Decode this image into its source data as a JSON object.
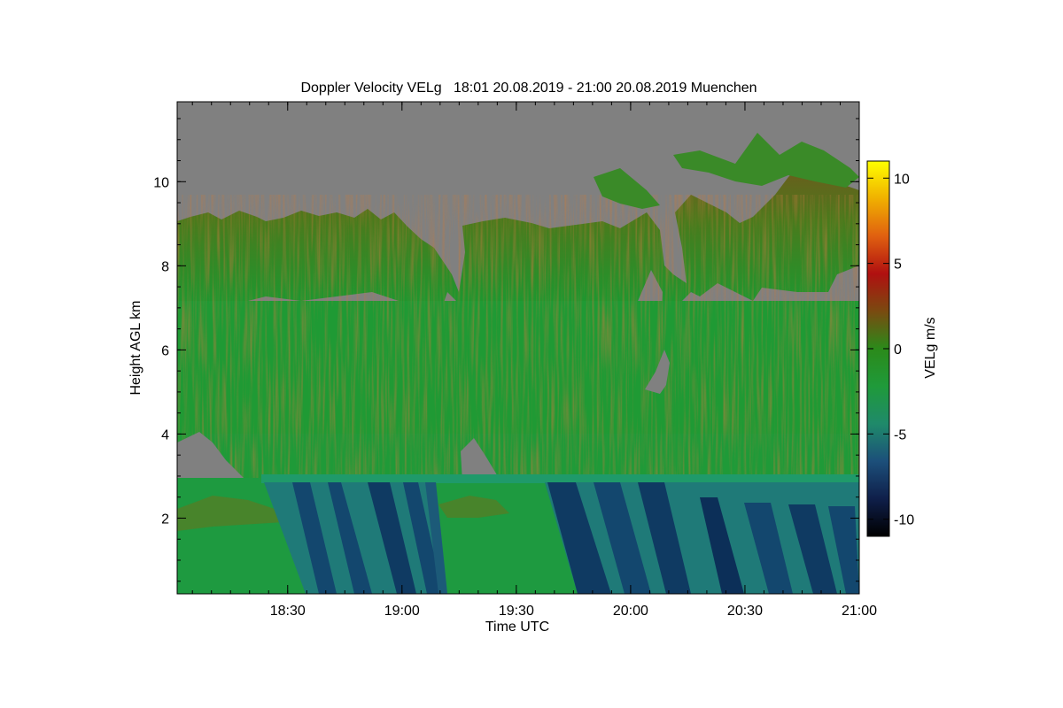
{
  "chart_data": {
    "type": "heatmap",
    "title": "Doppler Velocity VELg   18:01 20.08.2019 - 21:00 20.08.2019 Muenchen",
    "xlabel": "Time UTC",
    "ylabel": "Height AGL km",
    "colorbar_label": "VELg m/s",
    "x_range_utc": [
      "18:01",
      "21:00"
    ],
    "x_ticks": [
      "18:30",
      "19:00",
      "19:30",
      "20:00",
      "20:30",
      "21:00"
    ],
    "y_range_km": [
      0.2,
      11.9
    ],
    "y_ticks": [
      "2",
      "4",
      "6",
      "8",
      "10"
    ],
    "colorbar_range": [
      -11,
      11
    ],
    "colorbar_ticks": [
      "10",
      "5",
      "0",
      "-5",
      "-10"
    ],
    "no_signal_color": "#808080",
    "colormap": [
      "#000000",
      "#0f1f4a",
      "#1c4f7a",
      "#1f8a6a",
      "#1f9a3a",
      "#2b8a1a",
      "#7a4a10",
      "#b01010",
      "#e06010",
      "#f0b000",
      "#ffff00"
    ],
    "regions": [
      {
        "kind": "rain-fall-streaks",
        "t_start": "18:35",
        "t_end": "19:10",
        "h_top_km": 2.9,
        "velocity_ms": -7
      },
      {
        "kind": "rain-fall-streaks",
        "t_start": "19:45",
        "t_end": "21:00",
        "h_top_km": 2.9,
        "velocity_ms": -7
      },
      {
        "kind": "melting-layer",
        "h_km": 3.0,
        "velocity_ms": -3
      },
      {
        "kind": "ice-cloud",
        "h_bottom_km": 3.0,
        "h_top_km": 9.0,
        "velocity_ms": -1
      },
      {
        "kind": "no-signal",
        "h_bottom_km": 9.0,
        "h_top_km": 11.9
      }
    ]
  }
}
